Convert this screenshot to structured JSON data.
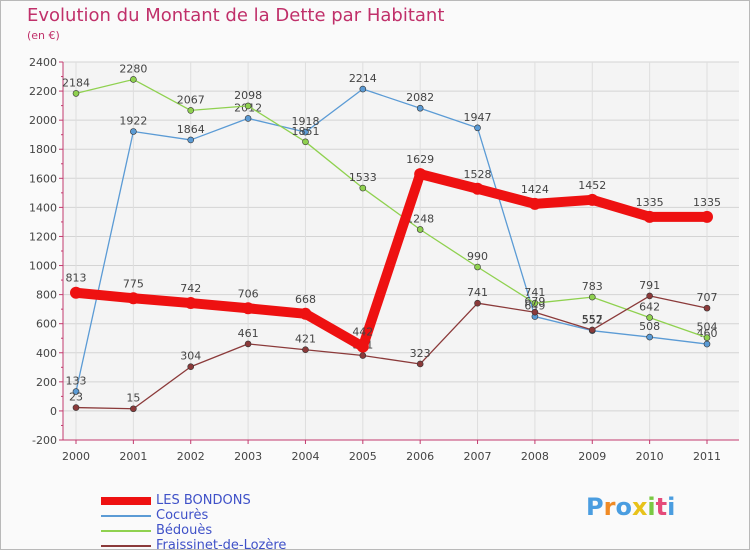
{
  "header": {
    "title": "Evolution du Montant de la Dette par Habitant",
    "subtitle": "(en €)"
  },
  "logo": {
    "letters": [
      "P",
      "r",
      "o",
      "x",
      "i",
      "t",
      "i"
    ],
    "colors": [
      "#4a9de0",
      "#f08a24",
      "#4a9de0",
      "#e8c21a",
      "#7ac943",
      "#e54b7a",
      "#4a9de0"
    ]
  },
  "chart_data": {
    "type": "line",
    "title": "Evolution du Montant de la Dette par Habitant",
    "subtitle": "(en €)",
    "xlabel": "",
    "ylabel": "",
    "x": [
      "2000",
      "2001",
      "2002",
      "2003",
      "2004",
      "2005",
      "2006",
      "2007",
      "2008",
      "2009",
      "2010",
      "2011"
    ],
    "yticks": [
      -200,
      0,
      200,
      400,
      600,
      800,
      1000,
      1200,
      1400,
      1600,
      1800,
      2000,
      2200,
      2400
    ],
    "ylim": [
      -200,
      2400
    ],
    "grid": true,
    "legend_position": "bottom-left",
    "series": [
      {
        "name": "Cocurès",
        "color": "#5b9bd5",
        "values": [
          133,
          1922,
          1864,
          2012,
          1918,
          2214,
          2082,
          1947,
          649,
          552,
          508,
          460
        ]
      },
      {
        "name": "Bédouès",
        "color": "#8fd14f",
        "values": [
          2184,
          2280,
          2067,
          2098,
          1851,
          1533,
          1248,
          990,
          741,
          783,
          642,
          504
        ]
      },
      {
        "name": "Fraissinet-de-Lozère",
        "color": "#8b3a3a",
        "values": [
          23,
          15,
          304,
          461,
          421,
          381,
          323,
          741,
          679,
          557,
          791,
          707
        ]
      },
      {
        "name": "LES BONDONS",
        "color": "#ee1111",
        "values": [
          813,
          775,
          742,
          706,
          668,
          442,
          1629,
          1528,
          1424,
          1452,
          1335,
          1335
        ]
      }
    ]
  }
}
